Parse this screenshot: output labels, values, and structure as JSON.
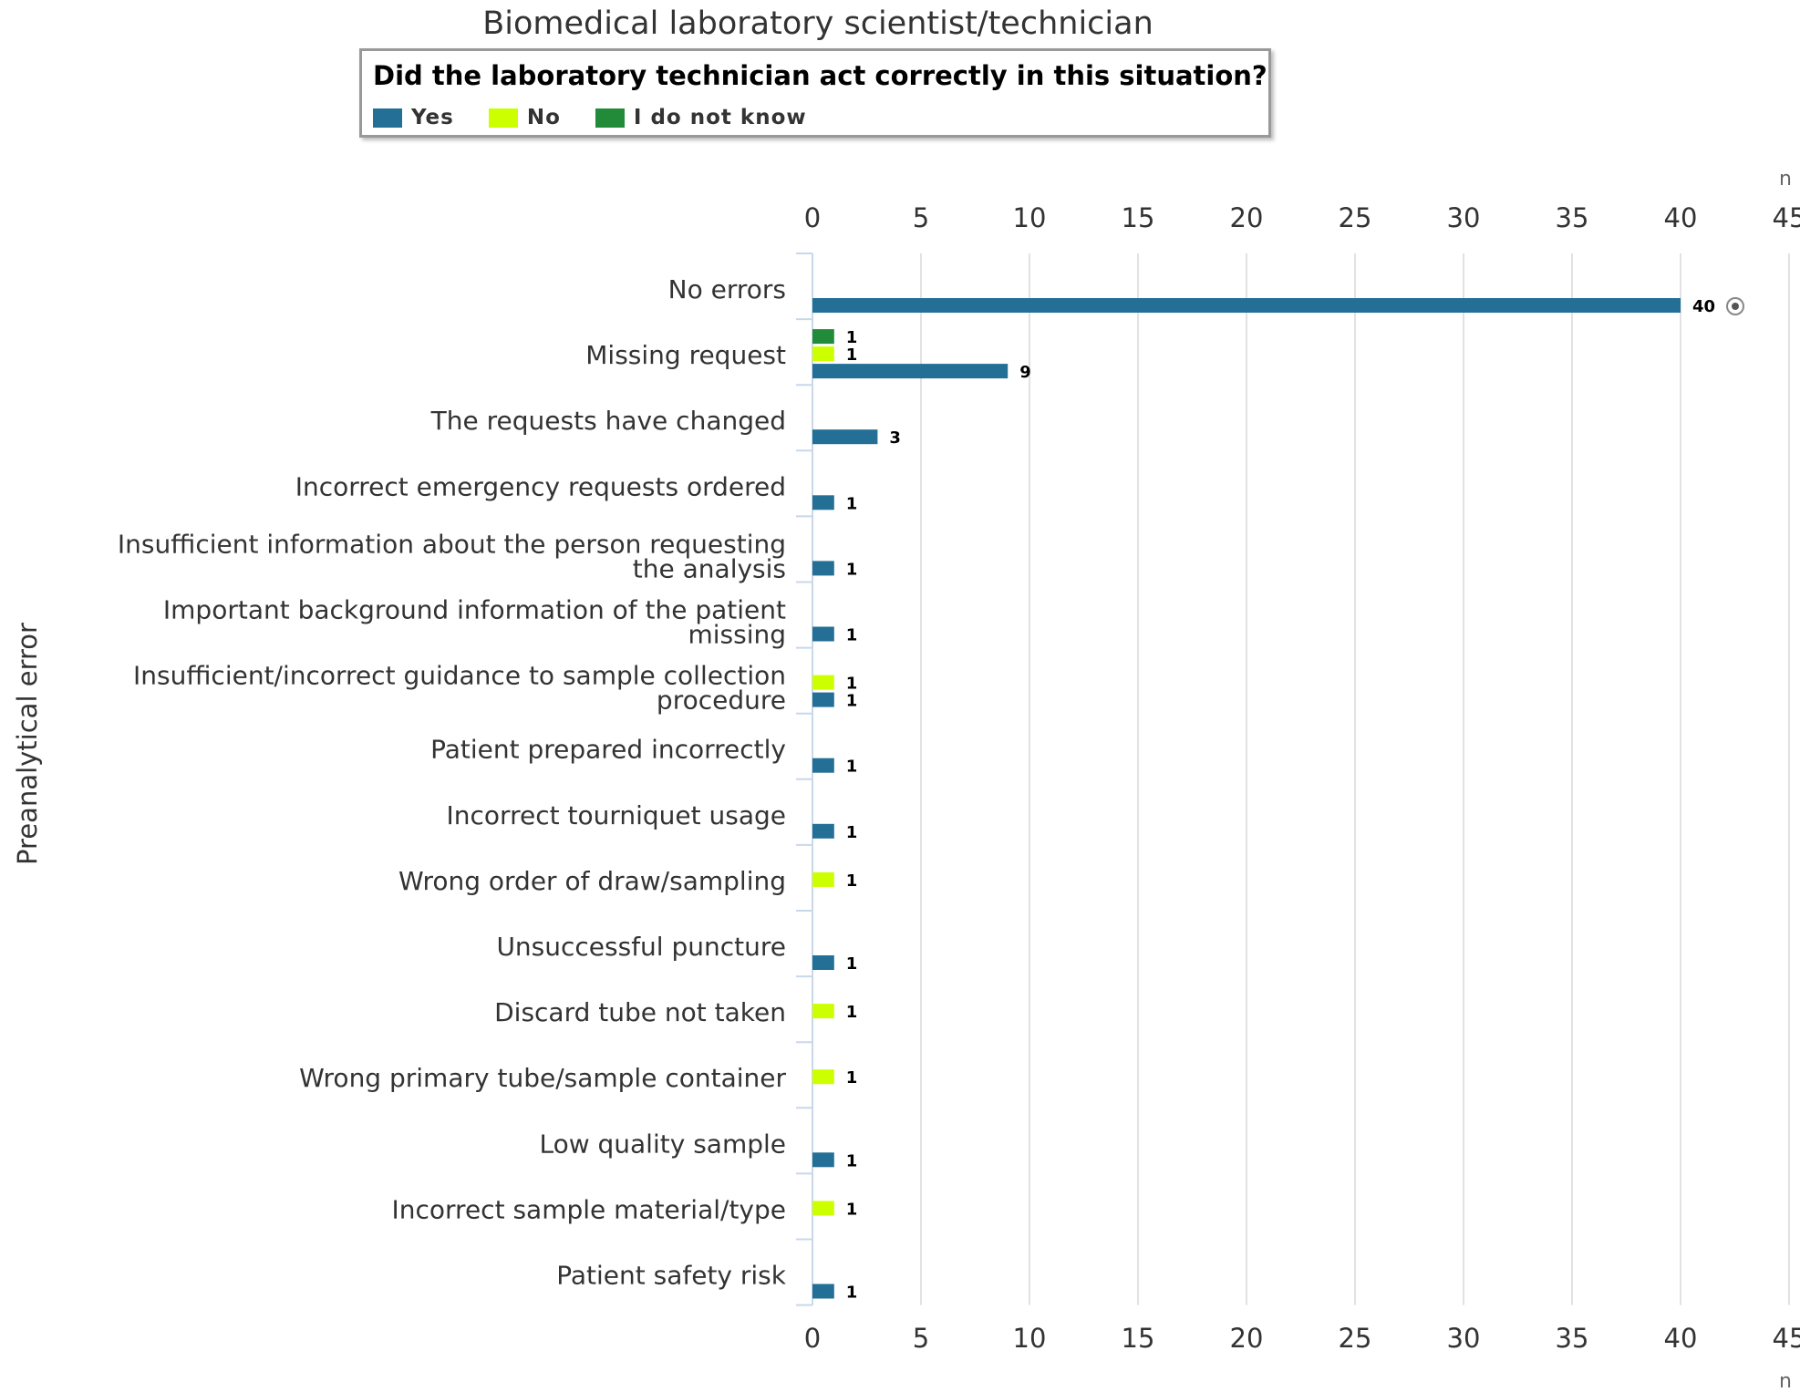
{
  "chart_data": {
    "type": "bar",
    "orientation": "horizontal",
    "title": "Biomedical laboratory scientist/technician",
    "legend": {
      "title": "Did the laboratory technician act correctly in this situation?",
      "placement": "top"
    },
    "ylabel": "Preanalytical error",
    "xlabel": "n",
    "xlim": [
      0,
      45
    ],
    "xticks": [
      0,
      5,
      10,
      15,
      20,
      25,
      30,
      35,
      40,
      45
    ],
    "grid": true,
    "categories": [
      "No errors",
      "Missing request",
      "The requests have changed",
      "Incorrect emergency requests ordered",
      "Insufficient information about the person requesting the analysis",
      "Important background information of the patient missing",
      "Insufficient/incorrect guidance to sample collection procedure",
      "Patient prepared incorrectly",
      "Incorrect tourniquet usage",
      "Wrong order of draw/sampling",
      "Unsuccessful puncture",
      "Discard tube not taken",
      "Wrong primary tube/sample container",
      "Low quality sample",
      "Incorrect sample material/type",
      "Patient safety risk"
    ],
    "category_label_lines": [
      [
        "No errors"
      ],
      [
        "Missing request"
      ],
      [
        "The requests have changed"
      ],
      [
        "Incorrect emergency requests ordered"
      ],
      [
        "Insufficient information about the person requesting",
        "the analysis"
      ],
      [
        "Important background information of the patient",
        "missing"
      ],
      [
        "Insufficient/incorrect guidance to sample collection",
        "procedure"
      ],
      [
        "Patient prepared incorrectly"
      ],
      [
        "Incorrect tourniquet usage"
      ],
      [
        "Wrong order of draw/sampling"
      ],
      [
        "Unsuccessful puncture"
      ],
      [
        "Discard tube not taken"
      ],
      [
        "Wrong primary tube/sample container"
      ],
      [
        "Low quality sample"
      ],
      [
        "Incorrect sample material/type"
      ],
      [
        "Patient safety risk"
      ]
    ],
    "series": [
      {
        "name": "Yes",
        "color": "#236f96",
        "values": [
          40,
          9,
          3,
          1,
          1,
          1,
          1,
          1,
          1,
          null,
          1,
          null,
          null,
          1,
          null,
          1
        ]
      },
      {
        "name": "No",
        "color": "#ccff00",
        "values": [
          null,
          1,
          null,
          null,
          null,
          null,
          1,
          null,
          null,
          1,
          null,
          1,
          1,
          null,
          1,
          null
        ]
      },
      {
        "name": "I do not know",
        "color": "#228b3a",
        "values": [
          null,
          1,
          null,
          null,
          null,
          null,
          null,
          null,
          null,
          null,
          null,
          null,
          null,
          null,
          null,
          null
        ]
      }
    ]
  }
}
